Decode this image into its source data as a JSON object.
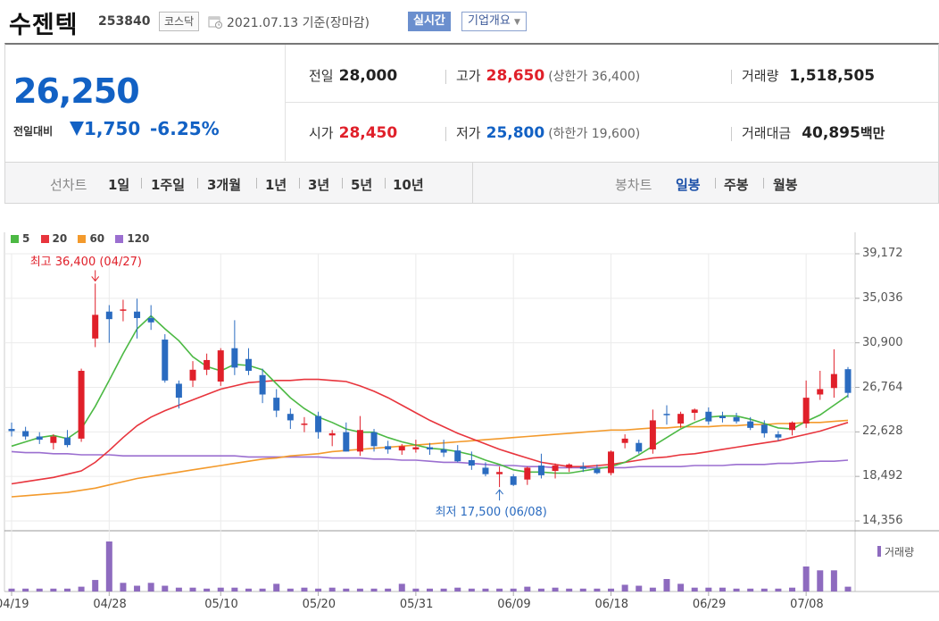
{
  "header": {
    "stock_name": "수젠텍",
    "stock_code": "253840",
    "market": "코스닥",
    "date_text": "2021.07.13  기준(장마감)",
    "realtime_label": "실시간",
    "company_label": "기업개요",
    "colors": {
      "realtime_bg": "#6b8fce"
    }
  },
  "summary": {
    "current_price": "26,250",
    "compare_label": "전일대비",
    "change": "1,750",
    "change_pct": "-6.25%",
    "direction": "down",
    "prev_close_label": "전일",
    "prev_close": "28,000",
    "high_label": "고가",
    "high": "28,650",
    "upper_limit": "(상한가 36,400)",
    "volume_label": "거래량",
    "volume": "1,518,505",
    "open_label": "시가",
    "open": "28,450",
    "low_label": "저가",
    "low": "25,800",
    "lower_limit": "(하한가 19,600)",
    "amount_label": "거래대금",
    "amount": "40,895",
    "amount_unit": "백만",
    "colors": {
      "up": "#e0202a",
      "down": "#1261c4"
    }
  },
  "period_bar": {
    "line_chart_label": "선차트",
    "line_periods": [
      "1일",
      "1주일",
      "3개월",
      "1년",
      "3년",
      "5년",
      "10년"
    ],
    "candle_label": "봉차트",
    "candle_periods": [
      "일봉",
      "주봉",
      "월봉"
    ],
    "selected_candle": "일봉"
  },
  "chart_data": {
    "type": "candlestick",
    "legend": [
      {
        "name": "5",
        "color": "#4cb944"
      },
      {
        "name": "20",
        "color": "#e8353d"
      },
      {
        "name": "60",
        "color": "#f39a2c"
      },
      {
        "name": "120",
        "color": "#9b6fd0"
      }
    ],
    "y_ticks": [
      "39,172",
      "35,036",
      "30,900",
      "26,764",
      "22,628",
      "18,492",
      "14,356"
    ],
    "ylim": [
      14356,
      39172
    ],
    "x_labels": [
      "04/19",
      "04/28",
      "05/10",
      "05/20",
      "05/31",
      "06/09",
      "06/18",
      "06/29",
      "07/08"
    ],
    "x_label_index": [
      0,
      7,
      15,
      22,
      29,
      36,
      43,
      50,
      57
    ],
    "high_annotation": "최고 36,400 (04/27)",
    "high_index": 6,
    "high_value": 36400,
    "low_annotation": "최저 17,500 (06/08)",
    "low_index": 35,
    "low_value": 17500,
    "volume_label": "거래량",
    "candles": [
      {
        "o": 22900,
        "h": 23500,
        "l": 22200,
        "c": 22700
      },
      {
        "o": 22700,
        "h": 23100,
        "l": 21900,
        "c": 22200
      },
      {
        "o": 22200,
        "h": 22600,
        "l": 21500,
        "c": 21900
      },
      {
        "o": 21600,
        "h": 22400,
        "l": 21000,
        "c": 22200
      },
      {
        "o": 22100,
        "h": 22800,
        "l": 21200,
        "c": 21400
      },
      {
        "o": 22000,
        "h": 28500,
        "l": 21700,
        "c": 28300
      },
      {
        "o": 31300,
        "h": 36400,
        "l": 30500,
        "c": 33500
      },
      {
        "o": 33800,
        "h": 34400,
        "l": 30900,
        "c": 33100
      },
      {
        "o": 33900,
        "h": 34900,
        "l": 32900,
        "c": 34000
      },
      {
        "o": 33800,
        "h": 35000,
        "l": 31300,
        "c": 33200
      },
      {
        "o": 33200,
        "h": 34400,
        "l": 32100,
        "c": 32800
      },
      {
        "o": 31200,
        "h": 31700,
        "l": 27200,
        "c": 27400
      },
      {
        "o": 27100,
        "h": 27400,
        "l": 24800,
        "c": 25800
      },
      {
        "o": 27400,
        "h": 29200,
        "l": 26800,
        "c": 28400
      },
      {
        "o": 28400,
        "h": 29900,
        "l": 27900,
        "c": 29300
      },
      {
        "o": 27300,
        "h": 30400,
        "l": 26900,
        "c": 30200
      },
      {
        "o": 30400,
        "h": 33000,
        "l": 27900,
        "c": 28600
      },
      {
        "o": 29400,
        "h": 30400,
        "l": 27900,
        "c": 28300
      },
      {
        "o": 27900,
        "h": 28500,
        "l": 25300,
        "c": 26100
      },
      {
        "o": 25800,
        "h": 26600,
        "l": 24000,
        "c": 24600
      },
      {
        "o": 24300,
        "h": 24800,
        "l": 22900,
        "c": 23700
      },
      {
        "o": 23300,
        "h": 24000,
        "l": 22600,
        "c": 23400
      },
      {
        "o": 24100,
        "h": 24500,
        "l": 22000,
        "c": 22600
      },
      {
        "o": 22300,
        "h": 22800,
        "l": 21300,
        "c": 22500
      },
      {
        "o": 22600,
        "h": 23500,
        "l": 20800,
        "c": 20800
      },
      {
        "o": 20800,
        "h": 24100,
        "l": 20400,
        "c": 22800
      },
      {
        "o": 22600,
        "h": 22900,
        "l": 20800,
        "c": 21300
      },
      {
        "o": 21300,
        "h": 21800,
        "l": 20600,
        "c": 21000
      },
      {
        "o": 20900,
        "h": 21500,
        "l": 20500,
        "c": 21300
      },
      {
        "o": 21000,
        "h": 21900,
        "l": 20700,
        "c": 21200
      },
      {
        "o": 21200,
        "h": 21600,
        "l": 20500,
        "c": 21000
      },
      {
        "o": 21000,
        "h": 21900,
        "l": 20300,
        "c": 20700
      },
      {
        "o": 20900,
        "h": 21400,
        "l": 19800,
        "c": 19900
      },
      {
        "o": 20000,
        "h": 20800,
        "l": 19100,
        "c": 19500
      },
      {
        "o": 19300,
        "h": 19800,
        "l": 18500,
        "c": 18700
      },
      {
        "o": 18700,
        "h": 19400,
        "l": 17500,
        "c": 18900
      },
      {
        "o": 18500,
        "h": 18700,
        "l": 17600,
        "c": 17700
      },
      {
        "o": 18200,
        "h": 19400,
        "l": 17700,
        "c": 19300
      },
      {
        "o": 19500,
        "h": 20600,
        "l": 18300,
        "c": 18600
      },
      {
        "o": 19000,
        "h": 19700,
        "l": 18300,
        "c": 19500
      },
      {
        "o": 19300,
        "h": 19700,
        "l": 18900,
        "c": 19600
      },
      {
        "o": 19400,
        "h": 19800,
        "l": 18900,
        "c": 19200
      },
      {
        "o": 19200,
        "h": 19600,
        "l": 18700,
        "c": 18800
      },
      {
        "o": 18800,
        "h": 20900,
        "l": 18600,
        "c": 20800
      },
      {
        "o": 21600,
        "h": 22400,
        "l": 21100,
        "c": 22000
      },
      {
        "o": 21600,
        "h": 21900,
        "l": 20600,
        "c": 20800
      },
      {
        "o": 21000,
        "h": 24700,
        "l": 20600,
        "c": 23700
      },
      {
        "o": 24300,
        "h": 25100,
        "l": 23300,
        "c": 24200
      },
      {
        "o": 23400,
        "h": 24500,
        "l": 23000,
        "c": 24300
      },
      {
        "o": 24400,
        "h": 24800,
        "l": 23700,
        "c": 24700
      },
      {
        "o": 24500,
        "h": 24900,
        "l": 23300,
        "c": 23600
      },
      {
        "o": 24100,
        "h": 24500,
        "l": 23500,
        "c": 23900
      },
      {
        "o": 24000,
        "h": 24400,
        "l": 23400,
        "c": 23600
      },
      {
        "o": 23600,
        "h": 24000,
        "l": 22800,
        "c": 23000
      },
      {
        "o": 23300,
        "h": 23700,
        "l": 22100,
        "c": 22500
      },
      {
        "o": 22400,
        "h": 22700,
        "l": 21800,
        "c": 22100
      },
      {
        "o": 22800,
        "h": 23600,
        "l": 22300,
        "c": 23500
      },
      {
        "o": 23400,
        "h": 27400,
        "l": 23000,
        "c": 25800
      },
      {
        "o": 26100,
        "h": 28300,
        "l": 25600,
        "c": 26600
      },
      {
        "o": 26700,
        "h": 30300,
        "l": 25800,
        "c": 28000
      },
      {
        "o": 28450,
        "h": 28650,
        "l": 25800,
        "c": 26250
      }
    ],
    "volumes": [
      3,
      3,
      3,
      3,
      3,
      5,
      12,
      52,
      9,
      6,
      9,
      6,
      4,
      4,
      3,
      4,
      4,
      3,
      3,
      8,
      3,
      4,
      3,
      4,
      3,
      3,
      3,
      3,
      8,
      3,
      3,
      3,
      4,
      3,
      3,
      3,
      3,
      5,
      3,
      4,
      3,
      3,
      3,
      3,
      7,
      6,
      4,
      13,
      8,
      4,
      4,
      4,
      3,
      3,
      3,
      3,
      4,
      26,
      22,
      22,
      5
    ],
    "ma5": [
      21300,
      21700,
      22100,
      22300,
      22000,
      22900,
      25000,
      27400,
      29900,
      32200,
      33400,
      32200,
      31100,
      29600,
      28700,
      28300,
      28900,
      28800,
      28400,
      27100,
      25800,
      24800,
      24000,
      23500,
      22900,
      22600,
      22600,
      22100,
      21700,
      21400,
      21100,
      21000,
      20800,
      20500,
      20000,
      19600,
      19100,
      18900,
      18900,
      18800,
      18800,
      19000,
      19200,
      19400,
      19800,
      20500,
      21300,
      22100,
      22900,
      23500,
      24000,
      24100,
      24100,
      23800,
      23400,
      23000,
      22900,
      23600,
      24200,
      25100,
      26000
    ],
    "ma20": [
      17800,
      18000,
      18200,
      18400,
      18700,
      19000,
      19800,
      20900,
      22100,
      23200,
      24000,
      24600,
      25100,
      25600,
      26100,
      26600,
      26900,
      27200,
      27300,
      27400,
      27400,
      27500,
      27500,
      27400,
      27300,
      26900,
      26400,
      25800,
      25100,
      24400,
      23700,
      23100,
      22500,
      22000,
      21500,
      21000,
      20600,
      20200,
      19800,
      19600,
      19400,
      19400,
      19500,
      19600,
      19800,
      20000,
      20200,
      20300,
      20500,
      20600,
      20800,
      21000,
      21200,
      21400,
      21600,
      21800,
      22100,
      22400,
      22700,
      23100,
      23500
    ],
    "ma60": [
      16600,
      16700,
      16800,
      16900,
      17000,
      17200,
      17400,
      17700,
      18000,
      18300,
      18500,
      18700,
      18900,
      19100,
      19300,
      19500,
      19700,
      19900,
      20100,
      20200,
      20400,
      20500,
      20600,
      20800,
      20900,
      21000,
      21100,
      21200,
      21300,
      21400,
      21500,
      21600,
      21700,
      21800,
      21900,
      22000,
      22100,
      22200,
      22300,
      22400,
      22500,
      22600,
      22700,
      22800,
      22800,
      22900,
      23000,
      23000,
      23100,
      23100,
      23100,
      23200,
      23200,
      23300,
      23300,
      23400,
      23400,
      23500,
      23500,
      23600,
      23700
    ],
    "ma120": [
      20800,
      20700,
      20700,
      20600,
      20600,
      20500,
      20500,
      20500,
      20400,
      20400,
      20400,
      20400,
      20400,
      20400,
      20400,
      20400,
      20400,
      20300,
      20300,
      20300,
      20300,
      20300,
      20300,
      20200,
      20200,
      20200,
      20100,
      20100,
      20000,
      20000,
      19900,
      19800,
      19800,
      19700,
      19600,
      19500,
      19500,
      19400,
      19400,
      19300,
      19300,
      19300,
      19300,
      19300,
      19300,
      19400,
      19400,
      19400,
      19400,
      19500,
      19500,
      19500,
      19600,
      19600,
      19600,
      19700,
      19700,
      19800,
      19900,
      19900,
      20000
    ]
  }
}
